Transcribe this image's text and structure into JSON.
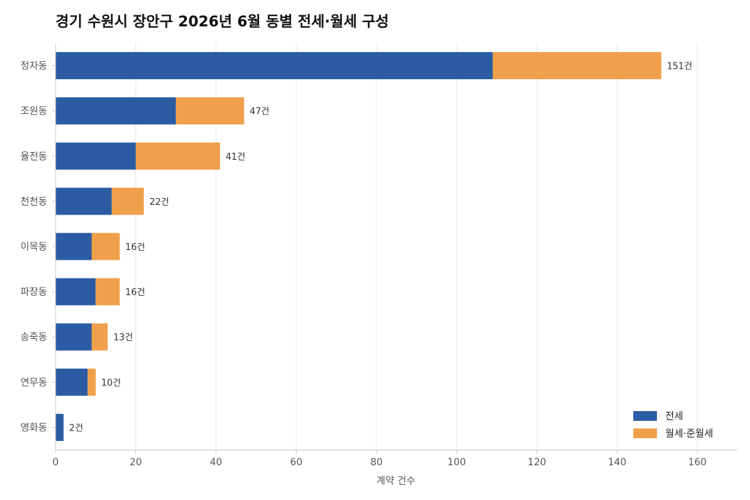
{
  "chart_data": {
    "type": "bar",
    "orientation": "horizontal",
    "stacked": true,
    "title": "경기 수원시 장안구 2026년 6월 동별 전세·월세 구성",
    "xlabel": "계약 건수",
    "ylabel": "",
    "xlim": [
      0,
      170
    ],
    "xticks": [
      0,
      20,
      40,
      60,
      80,
      100,
      120,
      140,
      160
    ],
    "grid": "vertical",
    "legend_position": "bottom-right",
    "categories": [
      "정자동",
      "조원동",
      "율전동",
      "천천동",
      "이목동",
      "파장동",
      "송죽동",
      "연무동",
      "영화동"
    ],
    "series": [
      {
        "name": "전세",
        "color": "#2b5ca3",
        "values": [
          109,
          30,
          20,
          14,
          9,
          10,
          9,
          8,
          2
        ]
      },
      {
        "name": "월세·준월세",
        "color": "#f0a04b",
        "values": [
          42,
          17,
          21,
          8,
          7,
          6,
          4,
          2,
          0
        ]
      }
    ],
    "totals": [
      151,
      47,
      41,
      22,
      16,
      16,
      13,
      10,
      2
    ],
    "total_suffix": "건"
  }
}
